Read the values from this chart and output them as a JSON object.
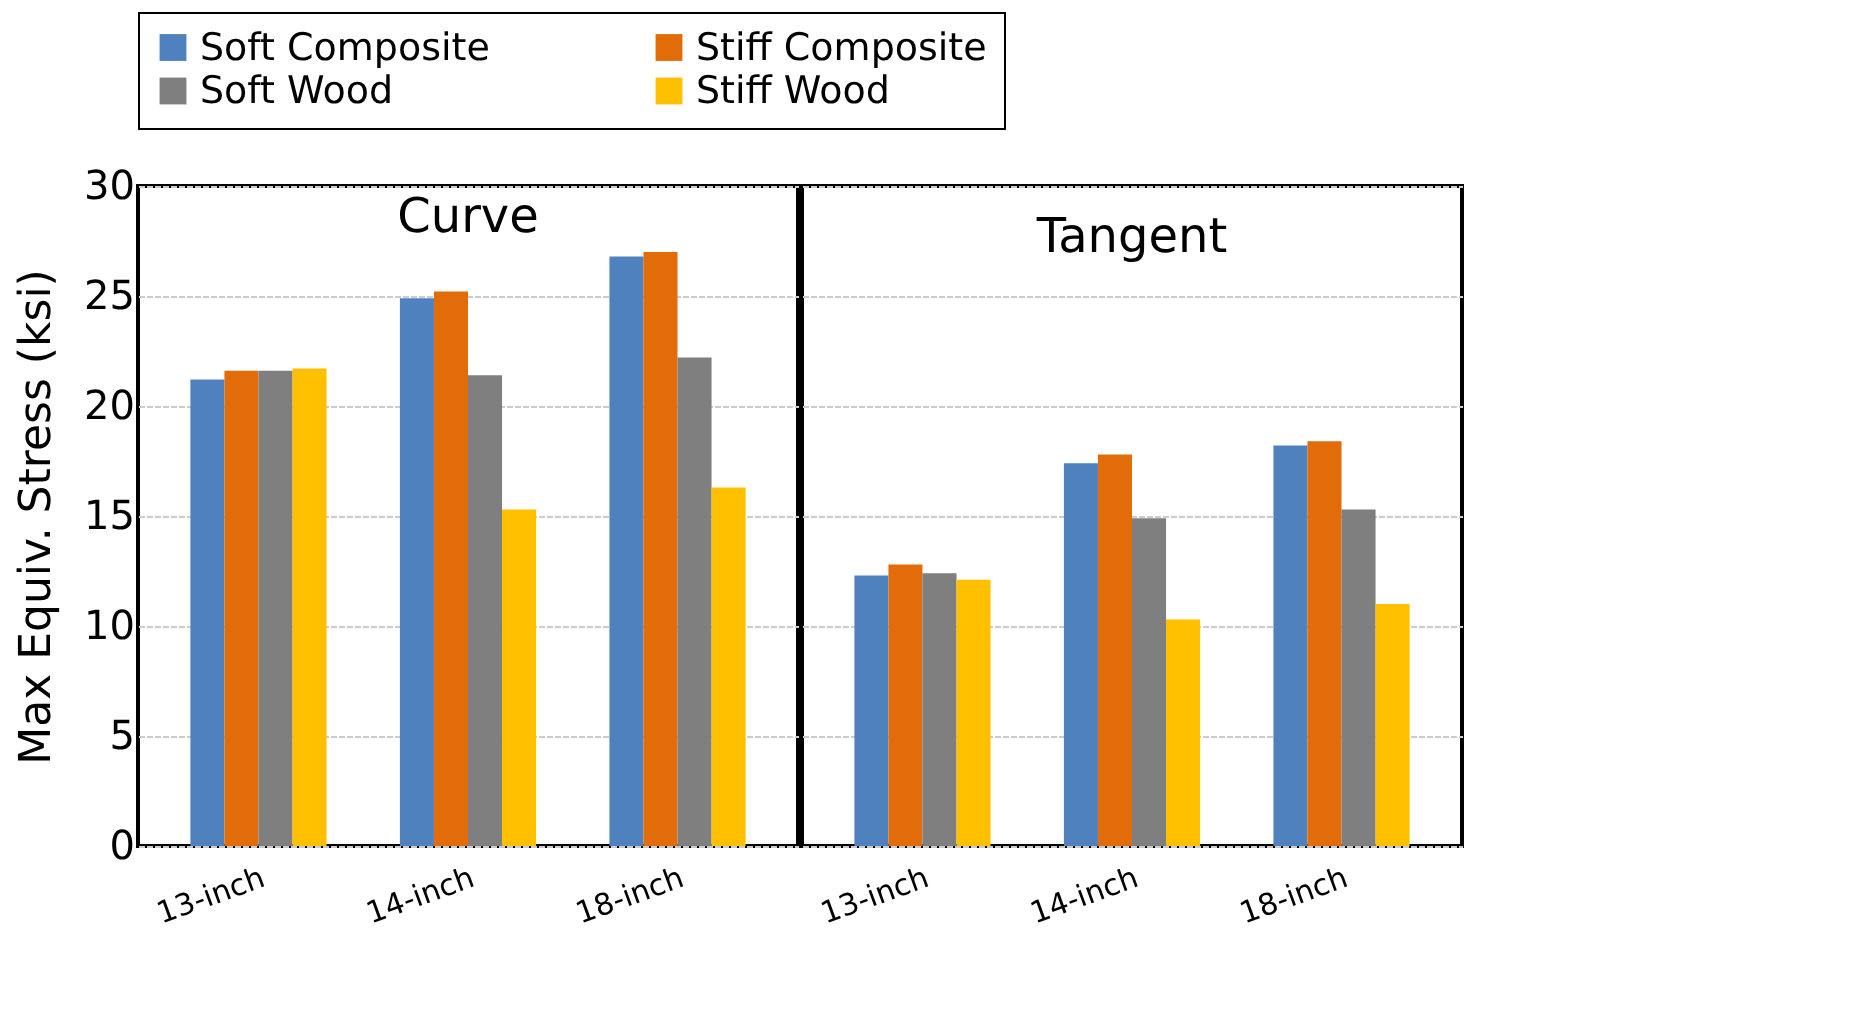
{
  "chart_data": [
    {
      "type": "bar",
      "title": "Curve",
      "ylabel": "Max Equiv. Stress (ksi)",
      "categories": [
        "13-inch",
        "14-inch",
        "18-inch"
      ],
      "ylim": [
        0,
        30
      ],
      "yticks": [
        0,
        5,
        10,
        15,
        20,
        25,
        30
      ],
      "grid": "y",
      "legend": "top",
      "series": [
        {
          "name": "Soft Composite",
          "color": "#4e81bd",
          "values": [
            21.2,
            24.9,
            26.8
          ]
        },
        {
          "name": "Stiff Composite",
          "color": "#e36c0a",
          "values": [
            21.6,
            25.2,
            27.0
          ]
        },
        {
          "name": "Soft Wood",
          "color": "#7f7f7f",
          "values": [
            21.6,
            21.4,
            22.2
          ]
        },
        {
          "name": "Stiff Wood",
          "color": "#ffc000",
          "values": [
            21.7,
            15.3,
            16.3
          ]
        }
      ]
    },
    {
      "type": "bar",
      "title": "Tangent",
      "categories": [
        "13-inch",
        "14-inch",
        "18-inch"
      ],
      "ylim": [
        0,
        30
      ],
      "yticks": [
        0,
        5,
        10,
        15,
        20,
        25,
        30
      ],
      "grid": "y",
      "tick_labels": "x",
      "series": [
        {
          "name": "Soft Composite",
          "color": "#4e81bd",
          "values": [
            12.3,
            17.4,
            18.2
          ]
        },
        {
          "name": "Stiff Composite",
          "color": "#e36c0a",
          "values": [
            12.8,
            17.8,
            18.4
          ]
        },
        {
          "name": "Soft Wood",
          "color": "#7f7f7f",
          "values": [
            12.4,
            14.9,
            15.3
          ]
        },
        {
          "name": "Stiff Wood",
          "color": "#ffc000",
          "values": [
            12.1,
            10.3,
            11.0
          ]
        }
      ]
    }
  ]
}
